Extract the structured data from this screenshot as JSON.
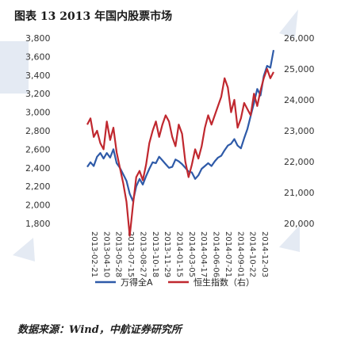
{
  "figure_title": "图表 13 2013 年国内股票市场",
  "source_text": "数据来源：Wind，中航证券研究所",
  "chart_data": {
    "type": "line",
    "title": "",
    "y_left": {
      "ticks": [
        "1,800",
        "2,000",
        "2,200",
        "2,400",
        "2,600",
        "2,800",
        "3,000",
        "3,200",
        "3,400",
        "3,600",
        "3,800"
      ],
      "lim": [
        1800,
        3800
      ]
    },
    "y_right": {
      "ticks": [
        "20,000",
        "21,000",
        "22,000",
        "23,000",
        "24,000",
        "25,000",
        "26,000"
      ],
      "lim": [
        20000,
        26000
      ]
    },
    "x_ticks": [
      "2013-02-21",
      "2013-04-10",
      "2013-05-28",
      "2013-07-15",
      "2013-08-27",
      "2013-10-18",
      "2013-11-29",
      "2014-01-15",
      "2014-03-05",
      "2014-04-17",
      "2014-06-06",
      "2014-07-21",
      "2014-09-01",
      "2014-10-22",
      "2014-12-03"
    ],
    "series": [
      {
        "name": "万得全A",
        "axis": "left",
        "color": "#2e5aa8",
        "values": [
          2410,
          2460,
          2420,
          2520,
          2560,
          2500,
          2560,
          2510,
          2600,
          2450,
          2400,
          2330,
          2260,
          2120,
          2040,
          2200,
          2280,
          2220,
          2310,
          2390,
          2460,
          2450,
          2520,
          2480,
          2440,
          2400,
          2410,
          2490,
          2470,
          2440,
          2400,
          2360,
          2350,
          2280,
          2320,
          2390,
          2420,
          2450,
          2420,
          2470,
          2510,
          2530,
          2590,
          2640,
          2660,
          2710,
          2640,
          2610,
          2720,
          2820,
          2960,
          3100,
          3250,
          3180,
          3390,
          3500,
          3480,
          3670
        ]
      },
      {
        "name": "恒生指数",
        "axis": "right",
        "color": "#c0282f",
        "values": [
          23200,
          23400,
          22800,
          23000,
          22600,
          22400,
          23300,
          22700,
          23100,
          22300,
          21800,
          21300,
          20700,
          19600,
          20600,
          21500,
          21700,
          21400,
          21900,
          22600,
          23000,
          23300,
          22800,
          23200,
          23500,
          23300,
          22800,
          22500,
          23200,
          22900,
          22000,
          21500,
          21900,
          22400,
          22100,
          22500,
          23100,
          23500,
          23200,
          23500,
          23800,
          24100,
          24700,
          24400,
          23600,
          24000,
          23100,
          23400,
          23900,
          23700,
          23500,
          24200,
          23800,
          24300,
          24700,
          25000,
          24700,
          24900
        ]
      }
    ],
    "legend": {
      "placement": "bottom",
      "entries": [
        "万得全A",
        "恒生指数（右）"
      ]
    },
    "grid": false
  }
}
